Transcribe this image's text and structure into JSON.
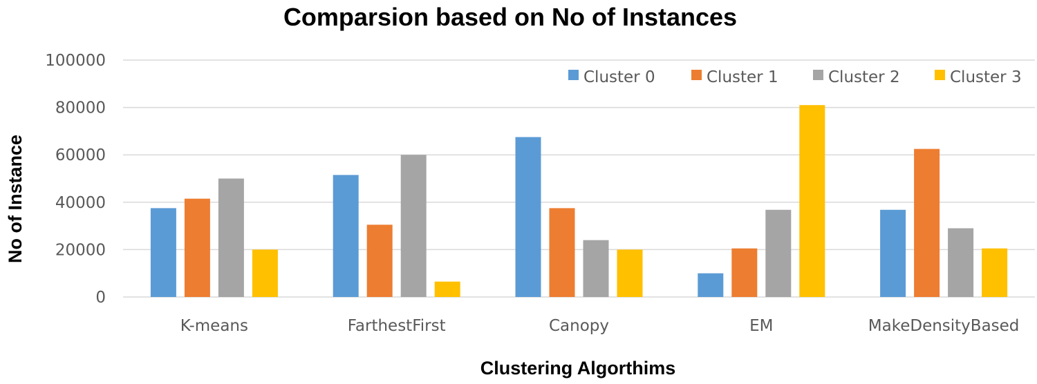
{
  "chart_data": {
    "type": "bar",
    "title": "Comparsion based on No of Instances",
    "xlabel": "Clustering Algorthims",
    "ylabel": "No of Instance",
    "ylim": [
      0,
      100000
    ],
    "yticks": [
      "0",
      "20000",
      "40000",
      "60000",
      "80000",
      "100000"
    ],
    "grid": true,
    "legend_position": "top-right",
    "categories": [
      "K-means",
      "FarthestFirst",
      "Canopy",
      "EM",
      "MakeDensityBased"
    ],
    "series": [
      {
        "name": "Cluster 0",
        "color": "#5b9bd5",
        "values": [
          37500,
          51500,
          67500,
          10000,
          36800
        ]
      },
      {
        "name": "Cluster 1",
        "color": "#ed7d31",
        "values": [
          41500,
          30500,
          37500,
          20500,
          62500
        ]
      },
      {
        "name": "Cluster 2",
        "color": "#a5a5a5",
        "values": [
          50000,
          60000,
          24000,
          36800,
          29000
        ]
      },
      {
        "name": "Cluster 3",
        "color": "#ffc000",
        "values": [
          20000,
          6500,
          20000,
          81000,
          20500
        ]
      }
    ]
  }
}
